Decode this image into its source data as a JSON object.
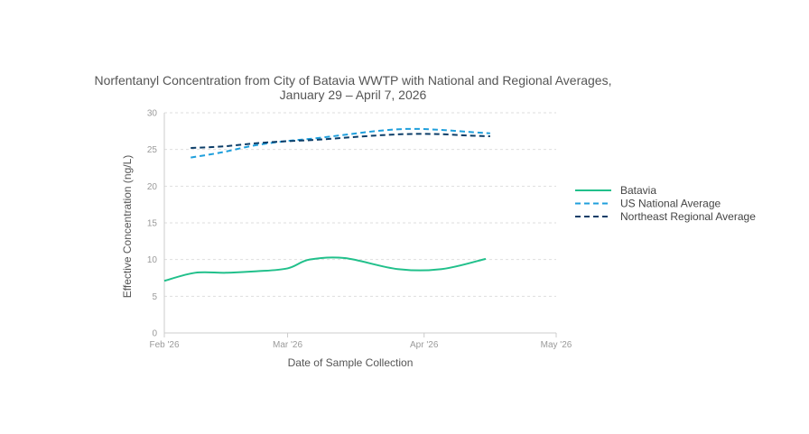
{
  "chart_data": {
    "type": "line",
    "title_line1": "Norfentanyl Concentration from City of Batavia WWTP with National and Regional Averages,",
    "title_line2": "January 29 – April 7, 2026",
    "xlabel": "Date of Sample Collection",
    "ylabel": "Effective Concentration (ng/L)",
    "x_range": [
      "2026-02-01",
      "2026-05-01"
    ],
    "x_ticks": [
      {
        "date": "2026-02-01",
        "label": "Feb '26"
      },
      {
        "date": "2026-03-01",
        "label": "Mar '26"
      },
      {
        "date": "2026-04-01",
        "label": "Apr '26"
      },
      {
        "date": "2026-05-01",
        "label": "May '26"
      }
    ],
    "ylim": [
      0,
      30
    ],
    "y_ticks": [
      0,
      5,
      10,
      15,
      20,
      25,
      30
    ],
    "grid": true,
    "legend_position": "right",
    "series": [
      {
        "name": "Batavia",
        "color": "#21c08b",
        "dash": "solid",
        "points": [
          {
            "x": "2026-02-01",
            "y": 7.1
          },
          {
            "x": "2026-02-08",
            "y": 8.2
          },
          {
            "x": "2026-02-15",
            "y": 8.2
          },
          {
            "x": "2026-02-22",
            "y": 8.4
          },
          {
            "x": "2026-03-01",
            "y": 8.8
          },
          {
            "x": "2026-03-06",
            "y": 10.0
          },
          {
            "x": "2026-03-14",
            "y": 10.2
          },
          {
            "x": "2026-03-26",
            "y": 8.7
          },
          {
            "x": "2026-04-05",
            "y": 8.7
          },
          {
            "x": "2026-04-15",
            "y": 10.1
          }
        ]
      },
      {
        "name": "US National Average",
        "color": "#1f9fdc",
        "dash": "dashed",
        "points": [
          {
            "x": "2026-02-07",
            "y": 23.9
          },
          {
            "x": "2026-02-14",
            "y": 24.6
          },
          {
            "x": "2026-02-21",
            "y": 25.5
          },
          {
            "x": "2026-02-28",
            "y": 26.1
          },
          {
            "x": "2026-03-07",
            "y": 26.5
          },
          {
            "x": "2026-03-14",
            "y": 27.0
          },
          {
            "x": "2026-03-21",
            "y": 27.5
          },
          {
            "x": "2026-03-28",
            "y": 27.8
          },
          {
            "x": "2026-04-04",
            "y": 27.7
          },
          {
            "x": "2026-04-11",
            "y": 27.4
          },
          {
            "x": "2026-04-16",
            "y": 27.2
          }
        ]
      },
      {
        "name": "Northeast Regional Average",
        "color": "#0b3d68",
        "dash": "dashed",
        "points": [
          {
            "x": "2026-02-07",
            "y": 25.2
          },
          {
            "x": "2026-02-14",
            "y": 25.4
          },
          {
            "x": "2026-02-21",
            "y": 25.8
          },
          {
            "x": "2026-02-28",
            "y": 26.1
          },
          {
            "x": "2026-03-07",
            "y": 26.3
          },
          {
            "x": "2026-03-14",
            "y": 26.6
          },
          {
            "x": "2026-03-21",
            "y": 26.9
          },
          {
            "x": "2026-03-28",
            "y": 27.1
          },
          {
            "x": "2026-04-04",
            "y": 27.1
          },
          {
            "x": "2026-04-11",
            "y": 26.9
          },
          {
            "x": "2026-04-16",
            "y": 26.8
          }
        ]
      }
    ]
  }
}
